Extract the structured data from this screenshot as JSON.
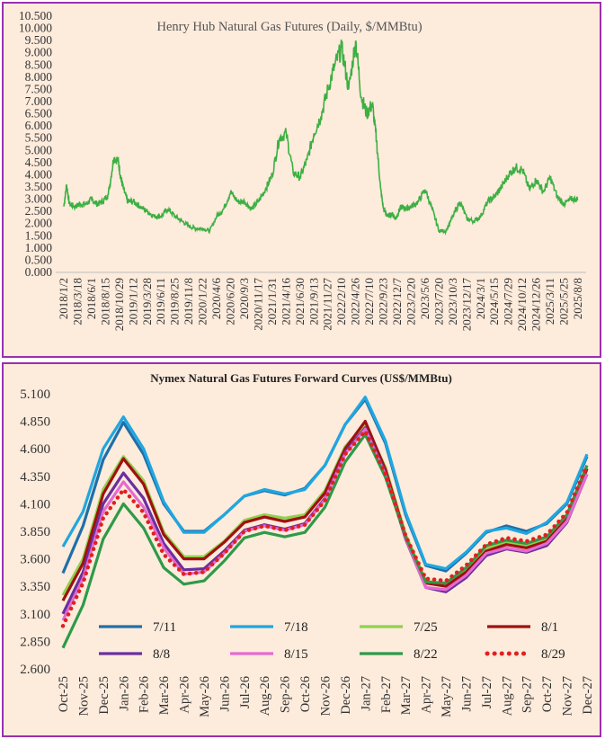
{
  "chart_data": [
    {
      "type": "line",
      "title": "Henry Hub Natural Gas Futures (Daily, $/MMBtu)",
      "xlabel": "",
      "ylabel": "",
      "ylim": [
        0,
        10.5
      ],
      "y_ticks": [
        "0.000",
        "0.500",
        "1.000",
        "1.500",
        "2.000",
        "2.500",
        "3.000",
        "3.500",
        "4.000",
        "4.500",
        "5.000",
        "5.500",
        "6.000",
        "6.500",
        "7.000",
        "7.500",
        "8.000",
        "8.500",
        "9.000",
        "9.500",
        "10.000",
        "10.500"
      ],
      "x_ticks": [
        "2018/1/2",
        "2018/3/18",
        "2018/6/1",
        "2018/8/15",
        "2018/10/29",
        "2019/1/12",
        "2019/3/28",
        "2019/6/11",
        "2019/8/25",
        "2019/11/8",
        "2020/1/22",
        "2020/4/6",
        "2020/6/20",
        "2020/9/3",
        "2020/11/17",
        "2021/1/31",
        "2021/4/16",
        "2021/6/30",
        "2021/9/13",
        "2021/11/27",
        "2022/2/10",
        "2022/4/26",
        "2022/7/10",
        "2022/9/23",
        "2022/12/7",
        "2023/2/20",
        "2023/5/6",
        "2023/7/20",
        "2023/10/3",
        "2023/12/17",
        "2024/3/1",
        "2024/5/15",
        "2024/7/29",
        "2024/10/12",
        "2024/12/26",
        "2025/3/11",
        "2025/5/25",
        "2025/8/8"
      ],
      "line_color": "#3cb043",
      "series": [
        {
          "name": "",
          "x": [
            0,
            0.2,
            0.4,
            0.8,
            1.2,
            1.6,
            2.0,
            2.4,
            2.8,
            3.2,
            3.6,
            3.9,
            4.1,
            4.3,
            4.6,
            5.0,
            5.5,
            6.0,
            6.5,
            7.0,
            7.5,
            8.0,
            8.5,
            9.0,
            9.5,
            10.0,
            10.5,
            11.0,
            11.5,
            12.0,
            12.5,
            13.0,
            13.5,
            14.0,
            14.5,
            15.0,
            15.5,
            16.0,
            16.5,
            17.0,
            17.5,
            18.0,
            18.5,
            19.0,
            19.5,
            20.0,
            20.5,
            21.0,
            21.4,
            21.8,
            22.2,
            22.5,
            22.8,
            23.0,
            23.3,
            23.6,
            23.9,
            24.1,
            24.3,
            24.6,
            25.0,
            25.5,
            26.0,
            26.5,
            27.0,
            27.5,
            28.0,
            28.5,
            29.0,
            29.5,
            30.0,
            30.5,
            31.0,
            31.5,
            32.0,
            32.5,
            33.0,
            33.5,
            34.0,
            34.5,
            35.0,
            35.5,
            36.0,
            36.5,
            37.0
          ],
          "values": [
            2.7,
            3.6,
            2.8,
            2.7,
            2.8,
            2.8,
            3.0,
            2.8,
            2.9,
            3.2,
            4.7,
            4.6,
            3.9,
            3.4,
            2.9,
            2.9,
            2.7,
            2.5,
            2.3,
            2.3,
            2.6,
            2.3,
            2.1,
            1.9,
            1.8,
            1.8,
            1.7,
            2.3,
            2.6,
            3.3,
            2.9,
            2.9,
            2.6,
            2.9,
            3.4,
            4.0,
            5.5,
            5.7,
            4.1,
            3.9,
            4.6,
            5.7,
            6.4,
            7.5,
            8.5,
            9.2,
            7.5,
            9.5,
            7.2,
            6.5,
            6.9,
            5.4,
            3.4,
            2.6,
            2.3,
            2.4,
            2.2,
            2.5,
            2.7,
            2.6,
            2.7,
            2.9,
            3.4,
            2.6,
            1.7,
            1.7,
            2.3,
            2.9,
            2.2,
            2.1,
            2.3,
            2.9,
            3.1,
            3.5,
            4.0,
            4.3,
            4.2,
            3.4,
            3.8,
            3.3,
            3.9,
            3.1,
            2.8,
            3.0,
            3.0
          ]
        }
      ]
    },
    {
      "type": "line",
      "title": "Nymex  Natural  Gas Futures Forward   Curves  (US$/MMBtu)",
      "xlabel": "",
      "ylabel": "",
      "ylim": [
        2.6,
        5.1
      ],
      "y_ticks": [
        "2.600",
        "2.850",
        "3.100",
        "3.350",
        "3.600",
        "3.850",
        "4.100",
        "4.350",
        "4.600",
        "4.850",
        "5.100"
      ],
      "categories": [
        "Oct-25",
        "Nov-25",
        "Dec-25",
        "Jan-26",
        "Feb-26",
        "Mar-26",
        "Apr-26",
        "May-26",
        "Jun-26",
        "Jul-26",
        "Aug-26",
        "Sep-26",
        "Oct-26",
        "Nov-26",
        "Dec-26",
        "Jan-27",
        "Feb-27",
        "Mar-27",
        "Apr-27",
        "May-27",
        "Jun-27",
        "Jul-27",
        "Aug-27",
        "Sep-27",
        "Oct-27",
        "Nov-27",
        "Dec-27"
      ],
      "legend_position": "bottom",
      "series": [
        {
          "name": "7/11",
          "color": "#1f6fa8",
          "style": "solid",
          "values": [
            3.47,
            3.9,
            4.5,
            4.84,
            4.55,
            4.1,
            3.85,
            3.85,
            4.0,
            4.17,
            4.22,
            4.18,
            4.24,
            4.45,
            4.82,
            5.05,
            4.65,
            4.0,
            3.54,
            3.49,
            3.65,
            3.84,
            3.9,
            3.85,
            3.92,
            4.1,
            4.53
          ]
        },
        {
          "name": "7/18",
          "color": "#1fa7e0",
          "style": "solid",
          "values": [
            3.71,
            4.03,
            4.6,
            4.89,
            4.6,
            4.12,
            3.84,
            3.84,
            4.0,
            4.17,
            4.23,
            4.19,
            4.23,
            4.45,
            4.82,
            5.07,
            4.67,
            4.02,
            3.55,
            3.51,
            3.66,
            3.85,
            3.88,
            3.83,
            3.93,
            4.11,
            4.55
          ]
        },
        {
          "name": "7/25",
          "color": "#8fd14f",
          "style": "solid",
          "values": [
            3.27,
            3.6,
            4.23,
            4.53,
            4.31,
            3.84,
            3.62,
            3.62,
            3.76,
            3.95,
            4.0,
            3.97,
            4.0,
            4.22,
            4.62,
            4.82,
            4.43,
            3.82,
            3.4,
            3.37,
            3.5,
            3.7,
            3.75,
            3.72,
            3.78,
            3.98,
            4.41
          ]
        },
        {
          "name": "8/1",
          "color": "#a01010",
          "style": "solid",
          "values": [
            3.22,
            3.56,
            4.19,
            4.51,
            4.28,
            3.82,
            3.6,
            3.6,
            3.75,
            3.93,
            3.98,
            3.94,
            3.98,
            4.2,
            4.6,
            4.85,
            4.41,
            3.8,
            3.38,
            3.35,
            3.48,
            3.67,
            3.73,
            3.7,
            3.76,
            3.96,
            4.42
          ]
        },
        {
          "name": "8/8",
          "color": "#6a2f9e",
          "style": "solid",
          "values": [
            3.1,
            3.48,
            4.1,
            4.38,
            4.15,
            3.74,
            3.5,
            3.51,
            3.67,
            3.86,
            3.91,
            3.87,
            3.92,
            4.15,
            4.57,
            4.79,
            4.38,
            3.78,
            3.34,
            3.3,
            3.43,
            3.63,
            3.69,
            3.66,
            3.72,
            3.93,
            4.37
          ]
        },
        {
          "name": "8/15",
          "color": "#e46ad0",
          "style": "solid",
          "values": [
            3.04,
            3.42,
            4.03,
            4.3,
            4.07,
            3.7,
            3.46,
            3.48,
            3.65,
            3.85,
            3.9,
            3.86,
            3.91,
            4.14,
            4.55,
            4.78,
            4.36,
            3.79,
            3.34,
            3.32,
            3.45,
            3.65,
            3.7,
            3.67,
            3.74,
            3.94,
            4.37
          ]
        },
        {
          "name": "8/22",
          "color": "#2e9a48",
          "style": "solid",
          "values": [
            2.79,
            3.18,
            3.78,
            4.1,
            3.88,
            3.52,
            3.37,
            3.4,
            3.58,
            3.79,
            3.84,
            3.8,
            3.84,
            4.07,
            4.48,
            4.73,
            4.34,
            3.8,
            3.39,
            3.38,
            3.52,
            3.72,
            3.77,
            3.74,
            3.8,
            4.0,
            4.45
          ]
        },
        {
          "name": "8/29",
          "color": "#e02020",
          "style": "dotted",
          "values": [
            2.99,
            3.38,
            3.97,
            4.23,
            4.02,
            3.64,
            3.46,
            3.48,
            3.65,
            3.85,
            3.9,
            3.86,
            3.91,
            4.13,
            4.55,
            4.76,
            4.37,
            3.81,
            3.42,
            3.4,
            3.54,
            3.73,
            3.79,
            3.76,
            3.82,
            4.02,
            4.45
          ]
        }
      ]
    }
  ]
}
